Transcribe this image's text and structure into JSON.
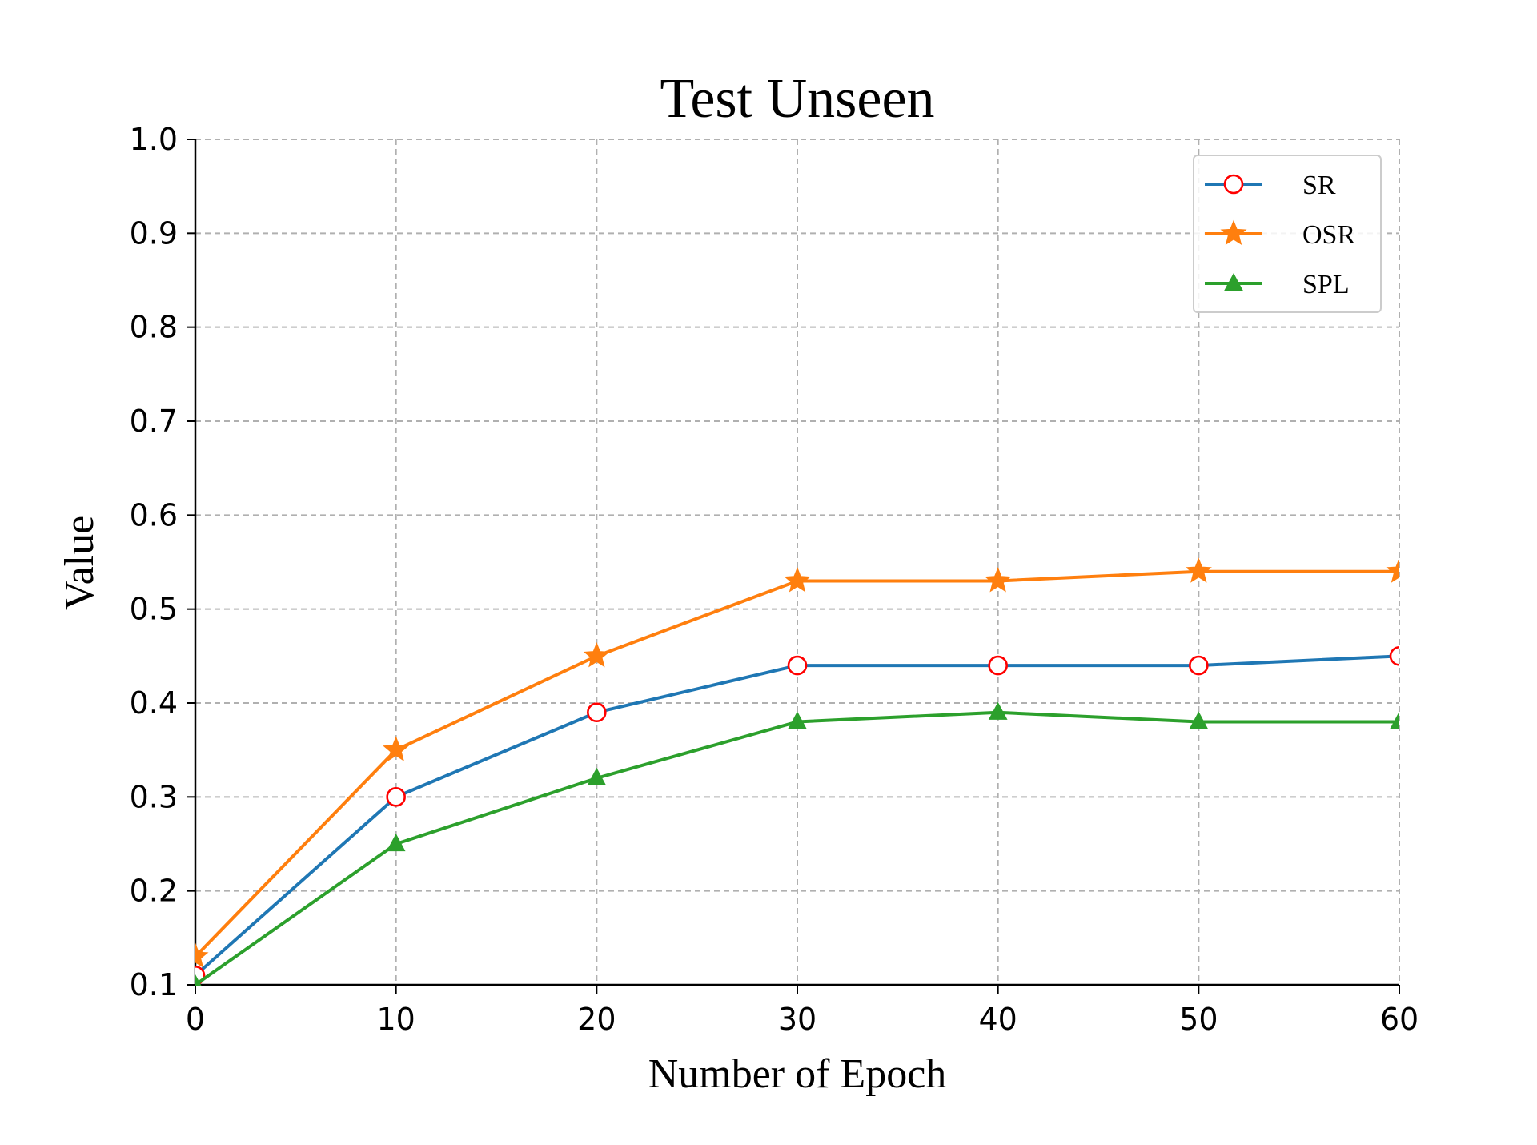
{
  "colors": {
    "sr": "#1f77b4",
    "sr_marker_edge": "#ff0000",
    "osr": "#ff7f0e",
    "spl": "#2ca02c",
    "grid": "#b0b0b0",
    "axis": "#000000"
  },
  "chart_data": {
    "type": "line",
    "title": "Test Unseen",
    "xlabel": "Number of Epoch",
    "ylabel": "Value",
    "xlim": [
      0,
      60
    ],
    "ylim": [
      0.1,
      1.0
    ],
    "x_ticks": [
      "0",
      "10",
      "20",
      "30",
      "40",
      "50",
      "60"
    ],
    "y_ticks": [
      "0.1",
      "0.2",
      "0.3",
      "0.4",
      "0.5",
      "0.6",
      "0.7",
      "0.8",
      "0.9",
      "1.0"
    ],
    "grid": true,
    "grid_style": "dashed",
    "legend_position": "top-right",
    "x": [
      0,
      10,
      20,
      30,
      40,
      50,
      60
    ],
    "series": [
      {
        "name": "SR",
        "marker": "open-circle",
        "values": [
          0.11,
          0.3,
          0.39,
          0.44,
          0.44,
          0.44,
          0.45
        ]
      },
      {
        "name": "OSR",
        "marker": "star",
        "values": [
          0.13,
          0.35,
          0.45,
          0.53,
          0.53,
          0.54,
          0.54
        ]
      },
      {
        "name": "SPL",
        "marker": "triangle",
        "values": [
          0.1,
          0.25,
          0.32,
          0.38,
          0.39,
          0.38,
          0.38
        ]
      }
    ]
  }
}
